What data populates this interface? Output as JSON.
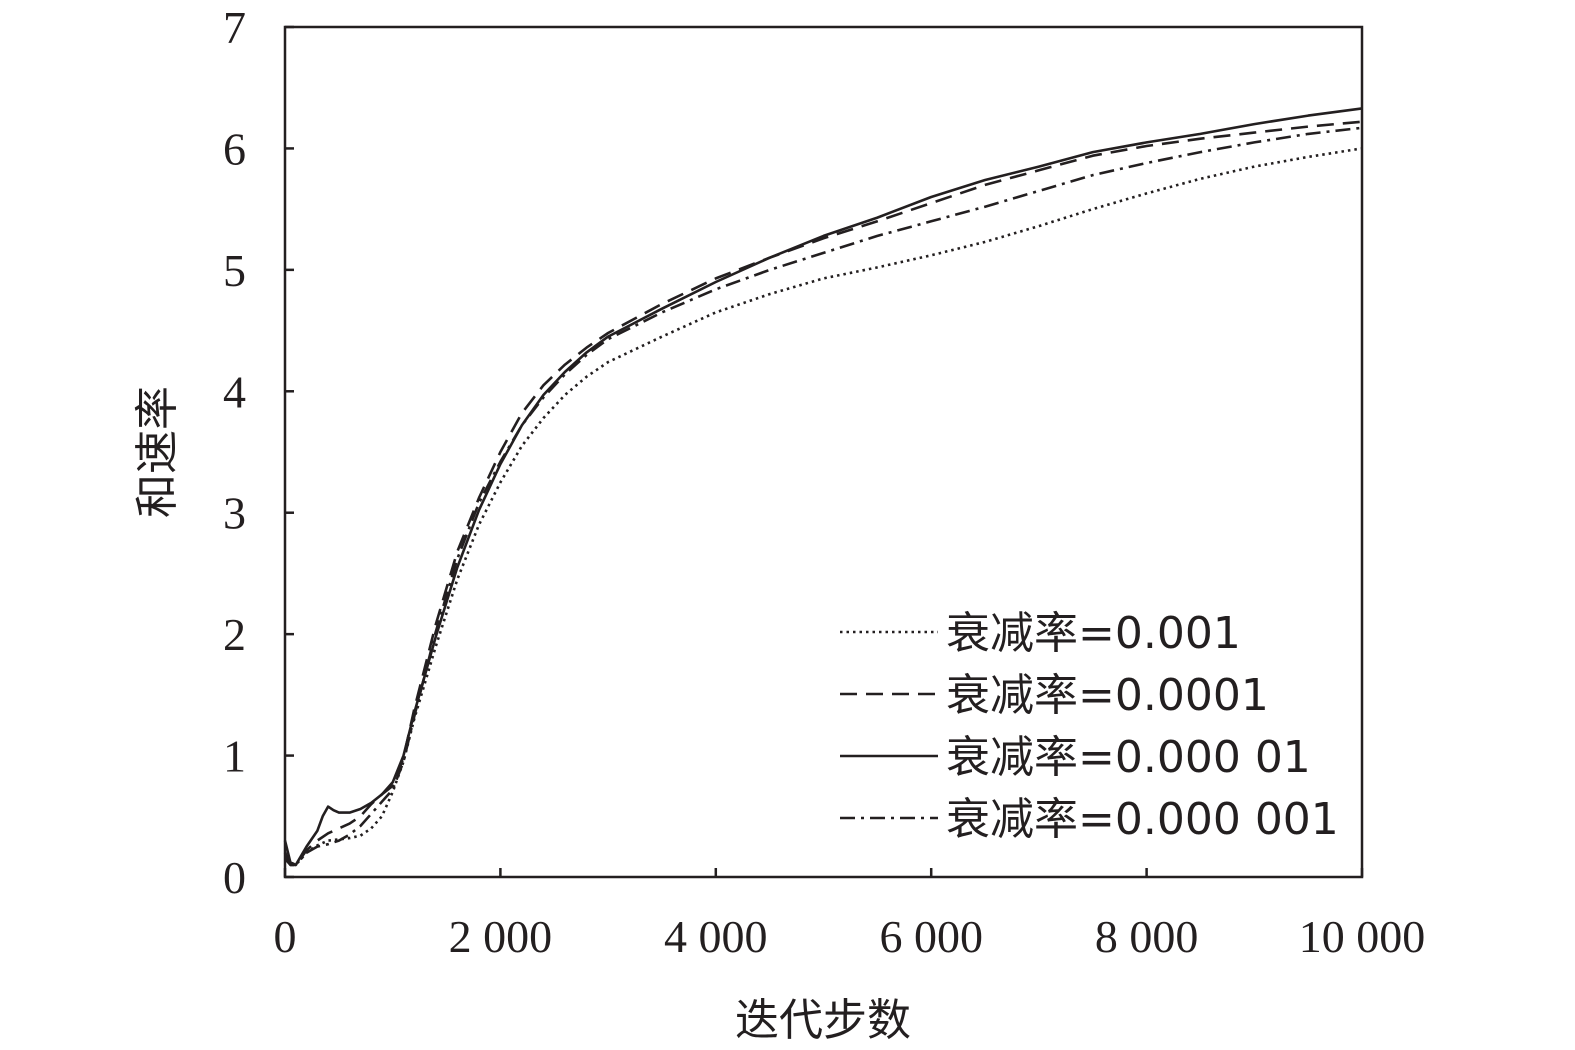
{
  "chart_data": {
    "type": "line",
    "xlabel": "迭代步数",
    "ylabel": "和速率",
    "xlim": [
      0,
      10000
    ],
    "ylim": [
      0,
      7
    ],
    "xticks": [
      {
        "value": 0,
        "label": "0"
      },
      {
        "value": 2000,
        "label": "2 000"
      },
      {
        "value": 4000,
        "label": "4 000"
      },
      {
        "value": 6000,
        "label": "6 000"
      },
      {
        "value": 8000,
        "label": "8 000"
      },
      {
        "value": 10000,
        "label": "10 000"
      }
    ],
    "yticks": [
      {
        "value": 0,
        "label": "0"
      },
      {
        "value": 1,
        "label": "1"
      },
      {
        "value": 2,
        "label": "2"
      },
      {
        "value": 3,
        "label": "3"
      },
      {
        "value": 4,
        "label": "4"
      },
      {
        "value": 5,
        "label": "5"
      },
      {
        "value": 6,
        "label": "6"
      },
      {
        "value": 7,
        "label": "7"
      }
    ],
    "grid": false,
    "legend_position": "bottom-right",
    "series": [
      {
        "name": "衰减率=0.001",
        "style": "dotted",
        "x": [
          0,
          50,
          100,
          200,
          300,
          400,
          500,
          600,
          700,
          800,
          900,
          1000,
          1100,
          1200,
          1400,
          1600,
          1800,
          2000,
          2200,
          2400,
          2600,
          2800,
          3000,
          3500,
          4000,
          4500,
          5000,
          5500,
          6000,
          6500,
          7000,
          7500,
          8000,
          8500,
          9000,
          9500,
          10000
        ],
        "y": [
          0.2,
          0.12,
          0.1,
          0.2,
          0.26,
          0.3,
          0.31,
          0.32,
          0.34,
          0.4,
          0.5,
          0.7,
          0.95,
          1.3,
          1.9,
          2.45,
          2.9,
          3.25,
          3.55,
          3.78,
          3.97,
          4.12,
          4.24,
          4.45,
          4.65,
          4.8,
          4.93,
          5.02,
          5.12,
          5.23,
          5.36,
          5.5,
          5.63,
          5.75,
          5.85,
          5.93,
          6.0
        ]
      },
      {
        "name": "衰减率=0.0001",
        "style": "dashed",
        "x": [
          0,
          50,
          100,
          200,
          300,
          400,
          500,
          600,
          700,
          800,
          900,
          1000,
          1100,
          1200,
          1400,
          1600,
          1800,
          2000,
          2200,
          2400,
          2600,
          2800,
          3000,
          3500,
          4000,
          4500,
          5000,
          5500,
          6000,
          6500,
          7000,
          7500,
          8000,
          8500,
          9000,
          9500,
          10000
        ],
        "y": [
          0.2,
          0.1,
          0.1,
          0.22,
          0.3,
          0.36,
          0.4,
          0.44,
          0.5,
          0.6,
          0.68,
          0.75,
          0.98,
          1.38,
          2.08,
          2.68,
          3.12,
          3.5,
          3.82,
          4.05,
          4.22,
          4.36,
          4.48,
          4.72,
          4.93,
          5.1,
          5.26,
          5.4,
          5.55,
          5.7,
          5.82,
          5.94,
          6.02,
          6.08,
          6.13,
          6.18,
          6.22
        ]
      },
      {
        "name": "衰减率=0.000 01",
        "style": "solid",
        "x": [
          0,
          50,
          100,
          200,
          300,
          350,
          400,
          450,
          500,
          600,
          700,
          800,
          900,
          1000,
          1100,
          1200,
          1400,
          1600,
          1800,
          2000,
          2200,
          2400,
          2600,
          2800,
          3000,
          3500,
          4000,
          4500,
          5000,
          5500,
          6000,
          6500,
          7000,
          7500,
          8000,
          8500,
          9000,
          9500,
          10000
        ],
        "y": [
          0.3,
          0.12,
          0.1,
          0.25,
          0.38,
          0.5,
          0.58,
          0.55,
          0.53,
          0.53,
          0.56,
          0.61,
          0.68,
          0.78,
          1.0,
          1.35,
          1.98,
          2.55,
          3.02,
          3.4,
          3.72,
          3.97,
          4.16,
          4.32,
          4.45,
          4.68,
          4.9,
          5.1,
          5.28,
          5.43,
          5.6,
          5.74,
          5.85,
          5.97,
          6.05,
          6.12,
          6.2,
          6.27,
          6.33
        ]
      },
      {
        "name": "衰减率=0.000 001",
        "style": "dashdot",
        "x": [
          0,
          50,
          100,
          200,
          300,
          400,
          500,
          600,
          700,
          800,
          900,
          1000,
          1100,
          1200,
          1400,
          1600,
          1800,
          2000,
          2200,
          2400,
          2600,
          2800,
          3000,
          3500,
          4000,
          4500,
          5000,
          5500,
          6000,
          6500,
          7000,
          7500,
          8000,
          8500,
          9000,
          9500,
          10000
        ],
        "y": [
          0.15,
          0.1,
          0.1,
          0.2,
          0.25,
          0.27,
          0.3,
          0.35,
          0.42,
          0.52,
          0.62,
          0.72,
          0.95,
          1.32,
          2.02,
          2.62,
          3.08,
          3.42,
          3.72,
          3.95,
          4.14,
          4.3,
          4.43,
          4.65,
          4.84,
          5.0,
          5.14,
          5.28,
          5.4,
          5.52,
          5.65,
          5.78,
          5.88,
          5.97,
          6.05,
          6.12,
          6.17
        ]
      }
    ]
  }
}
